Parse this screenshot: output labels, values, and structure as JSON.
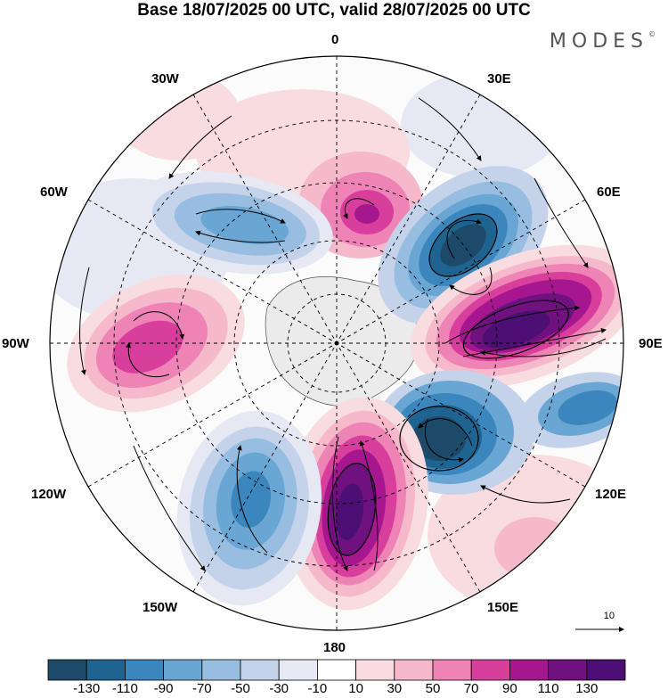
{
  "title": "Base 18/07/2025 00 UTC, valid 28/07/2025 00 UTC",
  "brand": "MODES",
  "brand_mark": "©",
  "longitude_labels": {
    "n0": "0",
    "e30": "30E",
    "e60": "60E",
    "e90": "90E",
    "e120": "120E",
    "e150": "150E",
    "s180": "180",
    "w150": "150W",
    "w120": "120W",
    "w90": "90W",
    "w60": "60W",
    "w30": "30W"
  },
  "vector_reference": "10",
  "colorbar": {
    "tick_labels": [
      "-130",
      "-110",
      "-90",
      "-70",
      "-50",
      "-30",
      "-10",
      "10",
      "30",
      "50",
      "70",
      "90",
      "110",
      "130"
    ],
    "colors": [
      "#1d4a69",
      "#1f6491",
      "#3b86bd",
      "#6aa6d3",
      "#97bee0",
      "#c4d3ea",
      "#e6e8f3",
      "#ffffff",
      "#f9dcdf",
      "#f6b9cb",
      "#ee84b5",
      "#d83f9d",
      "#a6178f",
      "#6f1280",
      "#4d0f73"
    ]
  },
  "map": {
    "projection": "south polar stereographic",
    "grid": true,
    "land_color": "#ebebeb",
    "anomalies": [
      {
        "sector": "0",
        "value": 110
      },
      {
        "sector": "50E",
        "value": -130
      },
      {
        "sector": "85E",
        "value": 130
      },
      {
        "sector": "135E",
        "value": -130
      },
      {
        "sector": "180",
        "value": 130
      },
      {
        "sector": "145W",
        "value": -70
      },
      {
        "sector": "95W",
        "value": 90
      },
      {
        "sector": "50W",
        "value": -70
      },
      {
        "sector": "105E",
        "value": -70
      },
      {
        "sector": "125E",
        "value": 50
      }
    ]
  }
}
